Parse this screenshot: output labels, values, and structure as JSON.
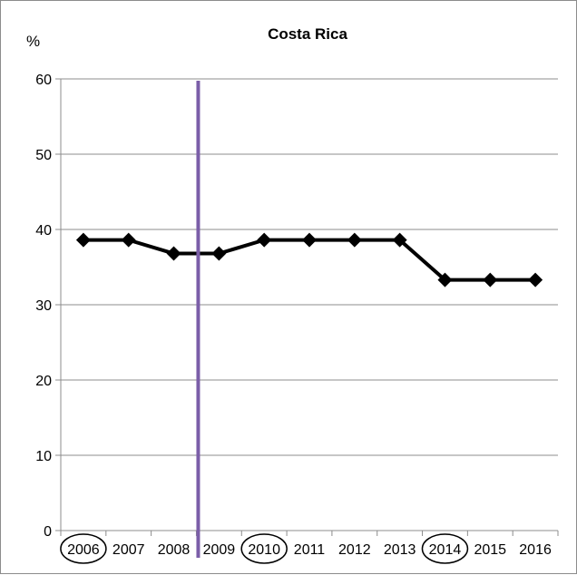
{
  "chart_data": {
    "type": "line",
    "title": "Costa Rica",
    "ylabel": "%",
    "xlabel": "",
    "ylim": [
      0,
      60
    ],
    "yticks": [
      0,
      10,
      20,
      30,
      40,
      50,
      60
    ],
    "grid": "horizontal",
    "categories": [
      "2006",
      "2007",
      "2008",
      "2009",
      "2010",
      "2011",
      "2012",
      "2013",
      "2014",
      "2015",
      "2016"
    ],
    "series": [
      {
        "values": [
          38.6,
          38.6,
          36.8,
          36.8,
          38.6,
          38.6,
          38.6,
          38.6,
          33.3,
          33.3,
          33.3
        ]
      }
    ],
    "line_color": "#000000",
    "marker": "diamond",
    "vertical_marker": {
      "between": [
        "2008",
        "2009"
      ],
      "color": "#7b5ea8"
    },
    "circled_categories": [
      "2006",
      "2010",
      "2014"
    ]
  }
}
